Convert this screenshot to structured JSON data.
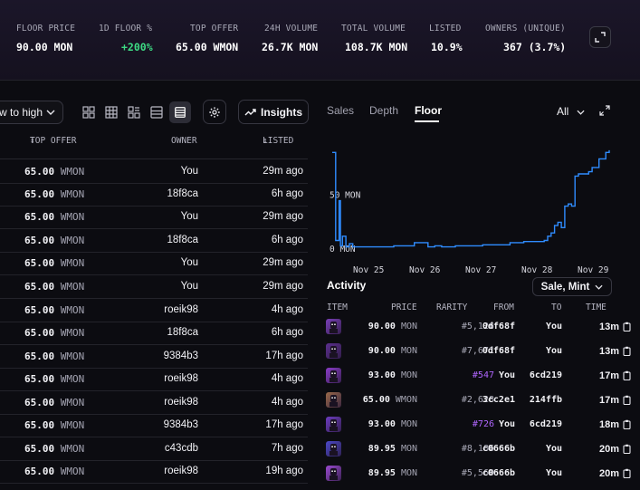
{
  "stats": [
    {
      "label": "FLOOR PRICE",
      "value": "90.00 MON"
    },
    {
      "label": "1D FLOOR %",
      "value": "+200%"
    },
    {
      "label": "TOP OFFER",
      "value": "65.00 WMON"
    },
    {
      "label": "24H VOLUME",
      "value": "26.7K MON"
    },
    {
      "label": "TOTAL VOLUME",
      "value": "108.7K MON"
    },
    {
      "label": "LISTED",
      "value": "10.9%"
    },
    {
      "label": "OWNERS (UNIQUE)",
      "value": "367 (3.7%)"
    }
  ],
  "toolbar": {
    "sort_label": "w to high",
    "insights_label": "Insights"
  },
  "table": {
    "headers": {
      "top_offer": "TOP OFFER",
      "owner": "OWNER",
      "listed": "LISTED"
    },
    "rows": [
      {
        "offer": "65.00",
        "unit": "WMON",
        "owner": "You",
        "listed": "29m ago"
      },
      {
        "offer": "65.00",
        "unit": "WMON",
        "owner": "18f8ca",
        "listed": "6h ago"
      },
      {
        "offer": "65.00",
        "unit": "WMON",
        "owner": "You",
        "listed": "29m ago"
      },
      {
        "offer": "65.00",
        "unit": "WMON",
        "owner": "18f8ca",
        "listed": "6h ago"
      },
      {
        "offer": "65.00",
        "unit": "WMON",
        "owner": "You",
        "listed": "29m ago"
      },
      {
        "offer": "65.00",
        "unit": "WMON",
        "owner": "You",
        "listed": "29m ago"
      },
      {
        "offer": "65.00",
        "unit": "WMON",
        "owner": "roeik98",
        "listed": "4h ago"
      },
      {
        "offer": "65.00",
        "unit": "WMON",
        "owner": "18f8ca",
        "listed": "6h ago"
      },
      {
        "offer": "65.00",
        "unit": "WMON",
        "owner": "9384b3",
        "listed": "17h ago"
      },
      {
        "offer": "65.00",
        "unit": "WMON",
        "owner": "roeik98",
        "listed": "4h ago"
      },
      {
        "offer": "65.00",
        "unit": "WMON",
        "owner": "roeik98",
        "listed": "4h ago"
      },
      {
        "offer": "65.00",
        "unit": "WMON",
        "owner": "9384b3",
        "listed": "17h ago"
      },
      {
        "offer": "65.00",
        "unit": "WMON",
        "owner": "c43cdb",
        "listed": "7h ago"
      },
      {
        "offer": "65.00",
        "unit": "WMON",
        "owner": "roeik98",
        "listed": "19h ago"
      }
    ]
  },
  "chart_tabs": {
    "sales": "Sales",
    "depth": "Depth",
    "floor": "Floor",
    "range": "All"
  },
  "chart_data": {
    "type": "line",
    "yticks": [
      "50 MON",
      "0 MON"
    ],
    "ytick_values": [
      50,
      0
    ],
    "xticks": [
      "Nov 25",
      "Nov 26",
      "Nov 27",
      "Nov 28",
      "Nov 29"
    ],
    "ylim": [
      0,
      97
    ],
    "series": [
      {
        "x": [
          0,
          0.05,
          0.1,
          0.12,
          0.15,
          0.2,
          0.25,
          0.3,
          0.4,
          0.5,
          0.7,
          0.9,
          1.1,
          1.2,
          1.4,
          1.5,
          1.6,
          1.8,
          2.0,
          2.2,
          2.4,
          2.6,
          2.8,
          3.0,
          3.1,
          3.15,
          3.2,
          3.25,
          3.3,
          3.35,
          3.4,
          3.45,
          3.5,
          3.55,
          3.6,
          3.65,
          3.7,
          3.75,
          3.8,
          3.9,
          4.0,
          4.05
        ],
        "y": [
          90,
          8,
          45,
          3,
          12,
          2,
          5,
          2,
          2,
          2,
          2,
          3,
          3,
          6,
          2,
          3,
          2,
          3,
          3,
          4,
          4,
          6,
          7,
          7,
          8,
          12,
          15,
          22,
          25,
          20,
          40,
          42,
          40,
          68,
          70,
          70,
          70,
          72,
          76,
          84,
          90,
          92
        ]
      }
    ]
  },
  "activity": {
    "title": "Activity",
    "filter": "Sale, Mint",
    "headers": {
      "item": "ITEM",
      "price": "PRICE",
      "rarity": "RARITY",
      "from": "FROM",
      "to": "TO",
      "time": "TIME"
    },
    "rows": [
      {
        "price": "90.00",
        "unit": "MON",
        "rarity": "#5,126",
        "rare": false,
        "from": "0df68f",
        "to": "You",
        "time": "13m",
        "color": "#7a3fb8"
      },
      {
        "price": "90.00",
        "unit": "MON",
        "rarity": "#7,671",
        "rare": false,
        "from": "0df68f",
        "to": "You",
        "time": "13m",
        "color": "#5b2f8f"
      },
      {
        "price": "93.00",
        "unit": "MON",
        "rarity": "#547",
        "rare": true,
        "from": "You",
        "to": "6cd219",
        "time": "17m",
        "color": "#8a3cc8"
      },
      {
        "price": "65.00",
        "unit": "WMON",
        "rarity": "#2,628",
        "rare": false,
        "from": "3cc2e1",
        "to": "214ffb",
        "time": "17m",
        "color": "#9a6a4a"
      },
      {
        "price": "93.00",
        "unit": "MON",
        "rarity": "#726",
        "rare": true,
        "from": "You",
        "to": "6cd219",
        "time": "18m",
        "color": "#6c3cc0"
      },
      {
        "price": "89.95",
        "unit": "MON",
        "rarity": "#8,186",
        "rare": false,
        "from": "c0666b",
        "to": "You",
        "time": "20m",
        "color": "#4b48c8"
      },
      {
        "price": "89.95",
        "unit": "MON",
        "rarity": "#5,560",
        "rare": false,
        "from": "c0666b",
        "to": "You",
        "time": "20m",
        "color": "#9a4ad0"
      }
    ]
  }
}
